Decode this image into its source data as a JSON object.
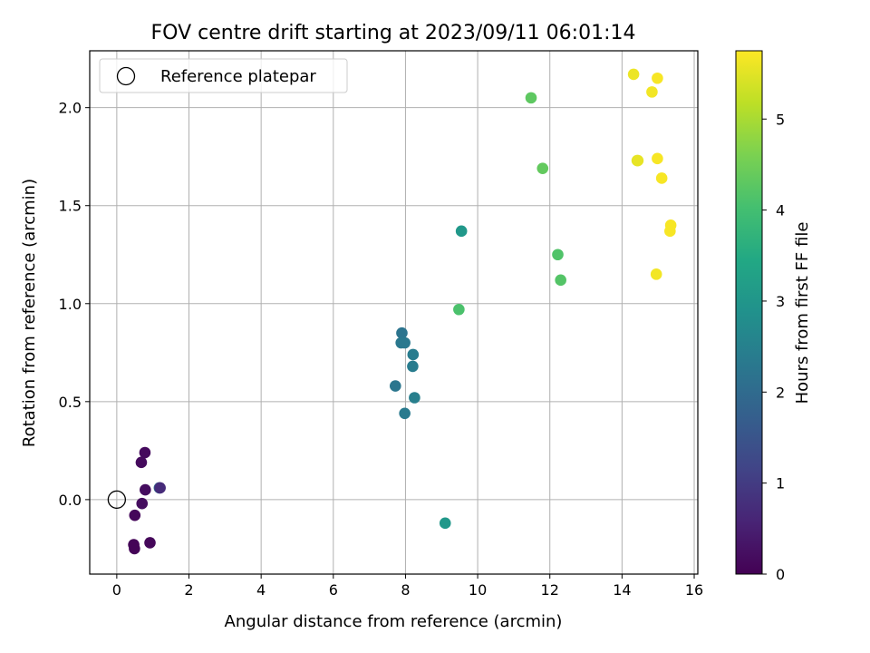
{
  "chart_data": {
    "type": "scatter",
    "title": "FOV centre drift starting at 2023/09/11 06:01:14",
    "xlabel": "Angular distance from reference (arcmin)",
    "ylabel": "Rotation from reference (arcmin)",
    "xlim": [
      -0.75,
      16.1
    ],
    "ylim": [
      -0.38,
      2.29
    ],
    "xticks": [
      0,
      2,
      4,
      6,
      8,
      10,
      12,
      14,
      16
    ],
    "xtick_labels": [
      "0",
      "2",
      "4",
      "6",
      "8",
      "10",
      "12",
      "14",
      "16"
    ],
    "yticks": [
      0.0,
      0.5,
      1.0,
      1.5,
      2.0
    ],
    "ytick_labels": [
      "0.0",
      "0.5",
      "1.0",
      "1.5",
      "2.0"
    ],
    "grid": true,
    "legend": {
      "placement": "top-left",
      "entries": [
        {
          "label": "Reference platepar",
          "marker": "open-circle"
        }
      ]
    },
    "reference_point": {
      "x": 0,
      "y": 0
    },
    "colorbar": {
      "label": "Hours from first FF file",
      "colormap": "viridis",
      "range": [
        0,
        5.75
      ],
      "ticks": [
        0,
        1,
        2,
        3,
        4,
        5
      ],
      "tick_labels": [
        "0",
        "1",
        "2",
        "3",
        "4",
        "5"
      ]
    },
    "points": [
      {
        "x": 0.78,
        "y": 0.24,
        "h": 0.15
      },
      {
        "x": 0.68,
        "y": 0.19,
        "h": 0.15
      },
      {
        "x": 0.79,
        "y": 0.05,
        "h": 0.2
      },
      {
        "x": 0.7,
        "y": -0.02,
        "h": 0.2
      },
      {
        "x": 0.5,
        "y": -0.08,
        "h": 0.1
      },
      {
        "x": 0.47,
        "y": -0.23,
        "h": 0.05
      },
      {
        "x": 0.49,
        "y": -0.25,
        "h": 0.05
      },
      {
        "x": 0.92,
        "y": -0.22,
        "h": 0.1
      },
      {
        "x": 1.18,
        "y": 0.06,
        "h": 2.0
      },
      {
        "x": 1.2,
        "y": 0.06,
        "h": 0.7
      },
      {
        "x": 7.9,
        "y": 0.85,
        "h": 2.2
      },
      {
        "x": 7.88,
        "y": 0.8,
        "h": 2.3
      },
      {
        "x": 7.98,
        "y": 0.8,
        "h": 2.3
      },
      {
        "x": 8.21,
        "y": 0.74,
        "h": 2.4
      },
      {
        "x": 8.2,
        "y": 0.68,
        "h": 2.4
      },
      {
        "x": 7.72,
        "y": 0.58,
        "h": 2.25
      },
      {
        "x": 8.25,
        "y": 0.52,
        "h": 2.45
      },
      {
        "x": 7.98,
        "y": 0.44,
        "h": 2.35
      },
      {
        "x": 9.1,
        "y": -0.12,
        "h": 3.05
      },
      {
        "x": 9.55,
        "y": 1.37,
        "h": 3.05
      },
      {
        "x": 9.48,
        "y": 0.97,
        "h": 4.1
      },
      {
        "x": 11.48,
        "y": 2.05,
        "h": 4.3
      },
      {
        "x": 11.8,
        "y": 1.69,
        "h": 4.35
      },
      {
        "x": 12.22,
        "y": 1.25,
        "h": 4.15
      },
      {
        "x": 12.3,
        "y": 1.12,
        "h": 4.2
      },
      {
        "x": 14.32,
        "y": 2.17,
        "h": 5.6
      },
      {
        "x": 14.98,
        "y": 2.15,
        "h": 5.7
      },
      {
        "x": 14.83,
        "y": 2.08,
        "h": 5.65
      },
      {
        "x": 14.42,
        "y": 1.73,
        "h": 5.5
      },
      {
        "x": 14.44,
        "y": 1.73,
        "h": 5.55
      },
      {
        "x": 14.98,
        "y": 1.74,
        "h": 5.7
      },
      {
        "x": 15.1,
        "y": 1.64,
        "h": 5.7
      },
      {
        "x": 15.35,
        "y": 1.4,
        "h": 5.7
      },
      {
        "x": 15.33,
        "y": 1.37,
        "h": 5.7
      },
      {
        "x": 14.95,
        "y": 1.15,
        "h": 5.65
      }
    ]
  }
}
